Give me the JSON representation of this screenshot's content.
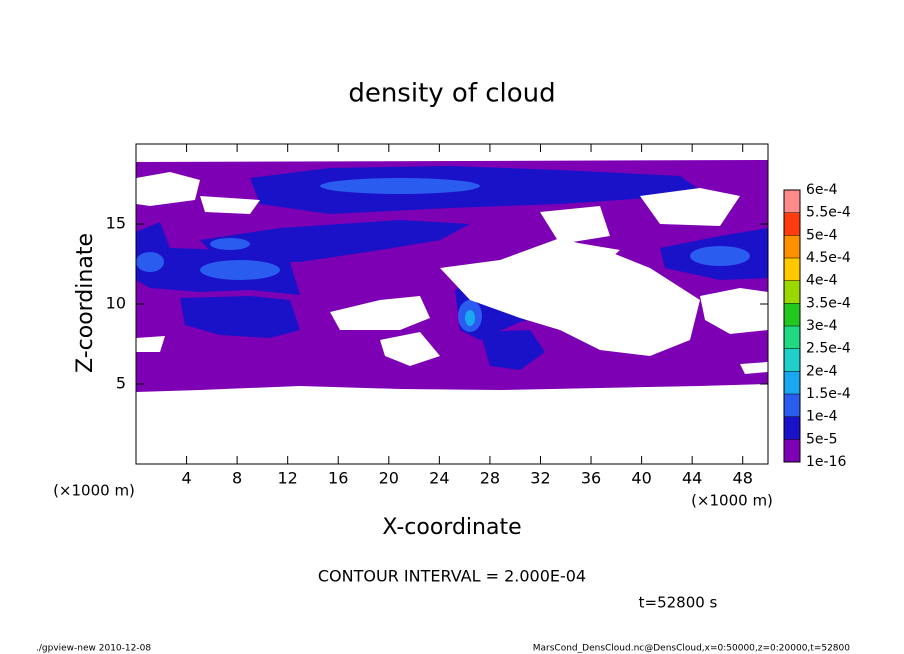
{
  "chart_data": {
    "type": "contour",
    "title": "density of cloud",
    "xlabel": "X-coordinate",
    "ylabel": "Z-coordinate",
    "xunit": "(×1000 m)",
    "xunit_right": "(×1000 m)",
    "contour_note": "CONTOUR INTERVAL = 2.000E-04",
    "time_label": "t=52800 s",
    "footer_left": "./gpview-new  2010-12-08",
    "footer_right": "MarsCond_DensCloud.nc@DensCloud,x=0:50000,z=0:20000,t=52800",
    "xlim": [
      0,
      50
    ],
    "ylim": [
      0,
      20
    ],
    "xticks": [
      4,
      8,
      12,
      16,
      20,
      24,
      28,
      32,
      36,
      40,
      44,
      48
    ],
    "yticks": [
      5,
      10,
      15
    ],
    "levels": [
      1e-16,
      {
        "value": 5e-05,
        "label": "5e-5"
      },
      {
        "value": 0.0001,
        "label": "1e-4"
      },
      {
        "value": 0.00015,
        "label": "1.5e-4"
      },
      {
        "value": 0.0002,
        "label": "2e-4"
      },
      {
        "value": 0.00025,
        "label": "2.5e-4"
      },
      {
        "value": 0.0003,
        "label": "3e-4"
      },
      {
        "value": 0.00035,
        "label": "3.5e-4"
      },
      {
        "value": 0.0004,
        "label": "4e-4"
      },
      {
        "value": 0.00045,
        "label": "4.5e-4"
      },
      {
        "value": 0.0005,
        "label": "5e-4"
      },
      {
        "value": 0.00055,
        "label": "5.5e-4"
      },
      {
        "value": 0.0006,
        "label": "6e-4"
      }
    ],
    "colors": [
      "#7d00b4",
      "#1a12c8",
      "#2a5cf0",
      "#1aa8f0",
      "#20d0c8",
      "#20d880",
      "#20c820",
      "#9ad800",
      "#ffc800",
      "#ff9000",
      "#ff3c10",
      "#ff8a8a"
    ]
  }
}
